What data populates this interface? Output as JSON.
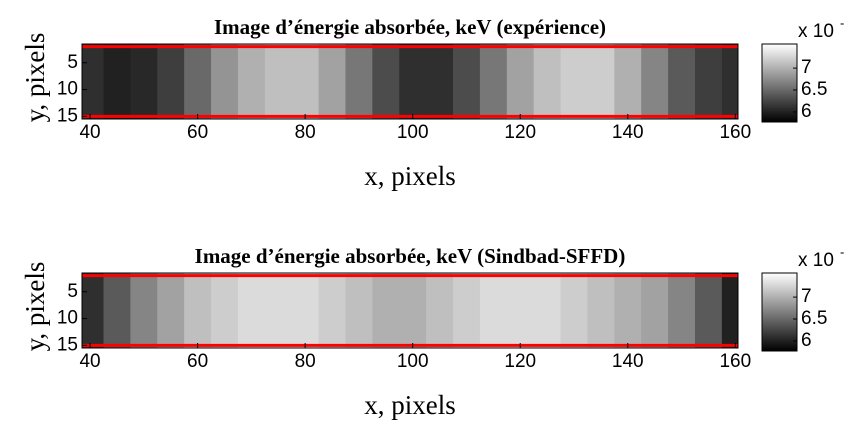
{
  "chart_data": [
    {
      "type": "heatmap",
      "title": "Image d’énergie absorbée, keV (expérience)",
      "xlabel": "x, pixels",
      "ylabel": "y, pixels",
      "x": [
        40,
        45,
        50,
        55,
        60,
        65,
        70,
        75,
        80,
        85,
        90,
        95,
        100,
        105,
        110,
        115,
        120,
        125,
        130,
        135,
        140,
        145,
        150,
        155,
        160
      ],
      "values": [
        6.1,
        6.0,
        6.05,
        6.2,
        6.5,
        6.8,
        7.0,
        7.1,
        7.1,
        6.9,
        6.6,
        6.3,
        6.1,
        6.1,
        6.3,
        6.6,
        6.9,
        7.1,
        7.2,
        7.2,
        7.0,
        6.7,
        6.4,
        6.2,
        6.1
      ],
      "xlim": [
        38.5,
        160.5
      ],
      "xticks": [
        40,
        60,
        80,
        100,
        120,
        140,
        160
      ],
      "ylim": [
        1.5,
        15.5
      ],
      "y_reversed": true,
      "yticks": [
        5,
        10,
        15
      ],
      "hlines": [
        2,
        15
      ],
      "hline_color": "#ff0000",
      "colormap": "gray",
      "clim": [
        5.77,
        7.55
      ],
      "colorbar_ticks": [
        6,
        6.5,
        7
      ],
      "colorbar_label": "x 10",
      "colorbar_exponent": "-"
    },
    {
      "type": "heatmap",
      "title": "Image d’énergie absorbée, keV (Sindbad-SFFD)",
      "xlabel": "x, pixels",
      "ylabel": "y, pixels",
      "x": [
        40,
        45,
        50,
        55,
        60,
        65,
        70,
        75,
        80,
        85,
        90,
        95,
        100,
        105,
        110,
        115,
        120,
        125,
        130,
        135,
        140,
        145,
        150,
        155,
        160
      ],
      "values": [
        6.1,
        6.4,
        6.7,
        6.9,
        7.1,
        7.2,
        7.3,
        7.3,
        7.3,
        7.2,
        7.1,
        7.0,
        7.0,
        7.1,
        7.2,
        7.3,
        7.3,
        7.3,
        7.2,
        7.1,
        7.0,
        6.9,
        6.7,
        6.4,
        6.0
      ],
      "xlim": [
        38.5,
        160.5
      ],
      "xticks": [
        40,
        60,
        80,
        100,
        120,
        140,
        160
      ],
      "ylim": [
        1.5,
        15.5
      ],
      "y_reversed": true,
      "yticks": [
        5,
        10,
        15
      ],
      "hlines": [
        2,
        15
      ],
      "hline_color": "#ff0000",
      "colormap": "gray",
      "clim": [
        5.77,
        7.55
      ],
      "colorbar_ticks": [
        6,
        6.5,
        7
      ],
      "colorbar_label": "x 10",
      "colorbar_exponent": "-"
    }
  ]
}
